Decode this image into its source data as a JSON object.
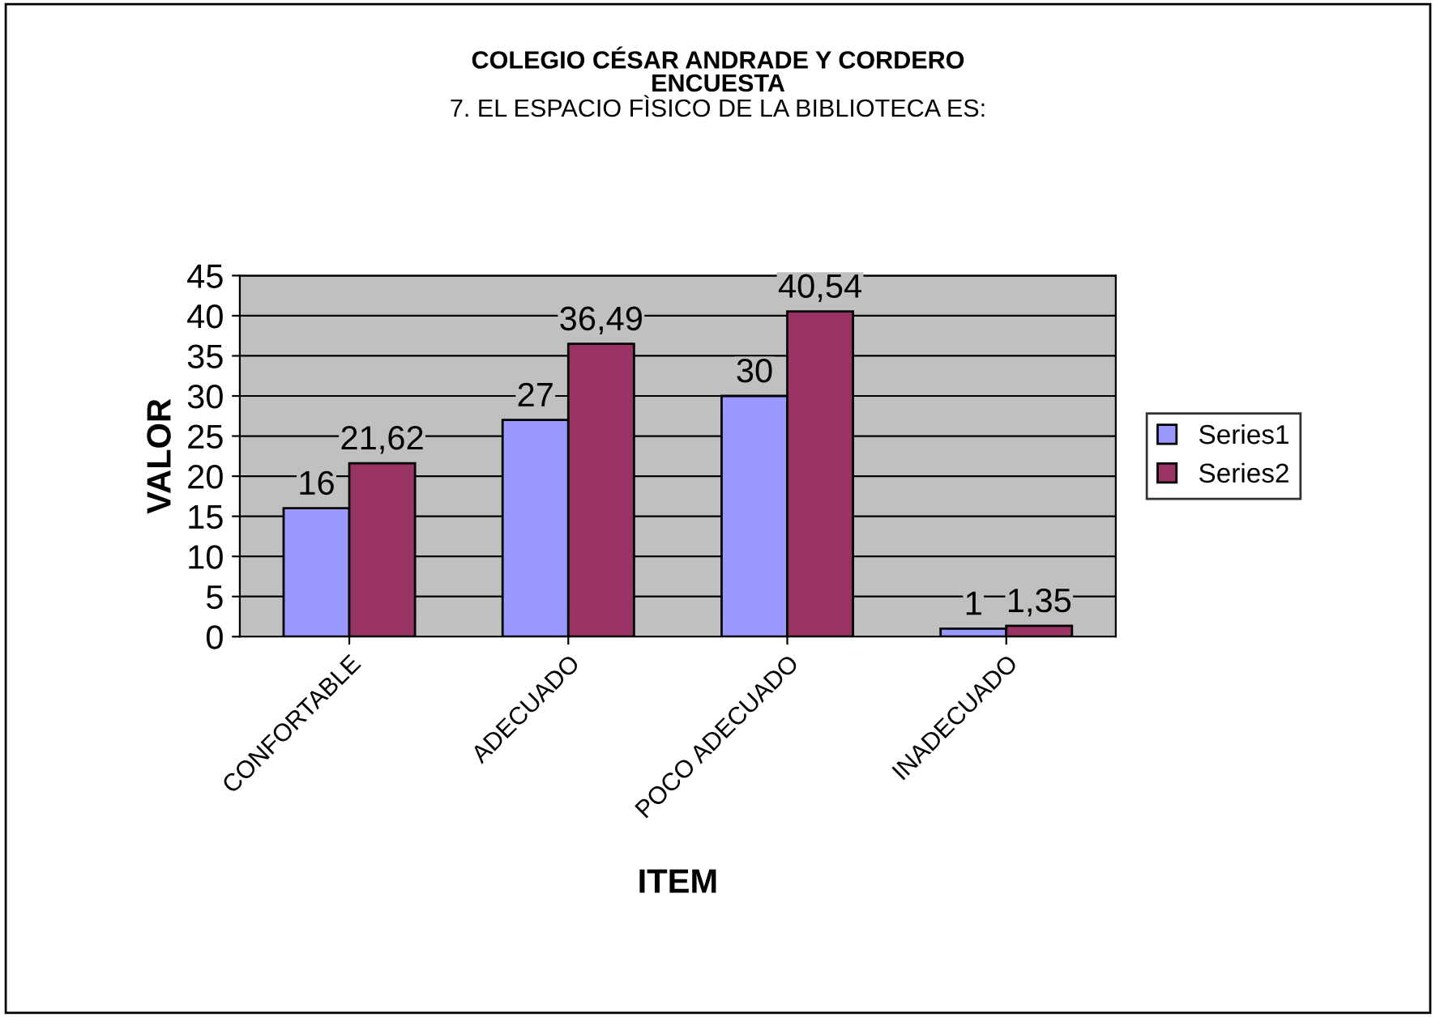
{
  "chart_data": {
    "type": "bar",
    "title": "COLEGIO CÉSAR ANDRADE Y CORDERO\nENCUESTA",
    "subtitle": "7. EL ESPACIO FÌSICO DE LA BIBLIOTECA ES:",
    "xlabel": "ITEM",
    "ylabel": "VALOR",
    "categories": [
      "CONFORTABLE",
      "ADECUADO",
      "POCO ADECUADO",
      "INADECUADO"
    ],
    "series": [
      {
        "name": "Series1",
        "color": "#9999ff",
        "values": [
          16,
          27,
          30,
          1
        ],
        "value_labels": [
          "16",
          "27",
          "30",
          "1"
        ]
      },
      {
        "name": "Series2",
        "color": "#993366",
        "values": [
          21.62,
          36.49,
          40.54,
          1.35
        ],
        "value_labels": [
          "21,62",
          "36,49",
          "40,54",
          "1,35"
        ]
      }
    ],
    "ylim": [
      0,
      45
    ],
    "yticks": [
      0,
      5,
      10,
      15,
      20,
      25,
      30,
      35,
      40,
      45
    ],
    "grid": "y",
    "legend": "right"
  }
}
